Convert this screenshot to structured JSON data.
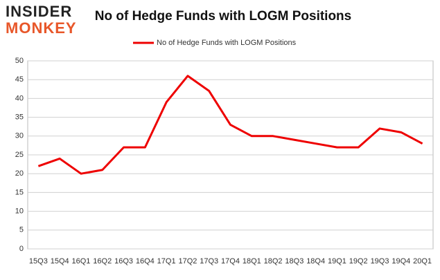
{
  "logo": {
    "line1": "INSIDER",
    "line2": "MONKEY"
  },
  "chart_data": {
    "type": "line",
    "title": "No of Hedge Funds with LOGM Positions",
    "categories": [
      "15Q3",
      "15Q4",
      "16Q1",
      "16Q2",
      "16Q3",
      "16Q4",
      "17Q1",
      "17Q2",
      "17Q3",
      "17Q4",
      "18Q1",
      "18Q2",
      "18Q3",
      "18Q4",
      "19Q1",
      "19Q2",
      "19Q3",
      "19Q4",
      "20Q1"
    ],
    "series": [
      {
        "name": "No of Hedge Funds with LOGM Positions",
        "color": "#ee0000",
        "values": [
          22,
          24,
          20,
          21,
          27,
          27,
          39,
          46,
          42,
          33,
          30,
          30,
          29,
          28,
          27,
          27,
          32,
          31,
          28
        ]
      }
    ],
    "ylim": [
      0,
      50
    ],
    "yticks": [
      0,
      5,
      10,
      15,
      20,
      25,
      30,
      35,
      40,
      45,
      50
    ],
    "grid": true,
    "legend": "top"
  }
}
